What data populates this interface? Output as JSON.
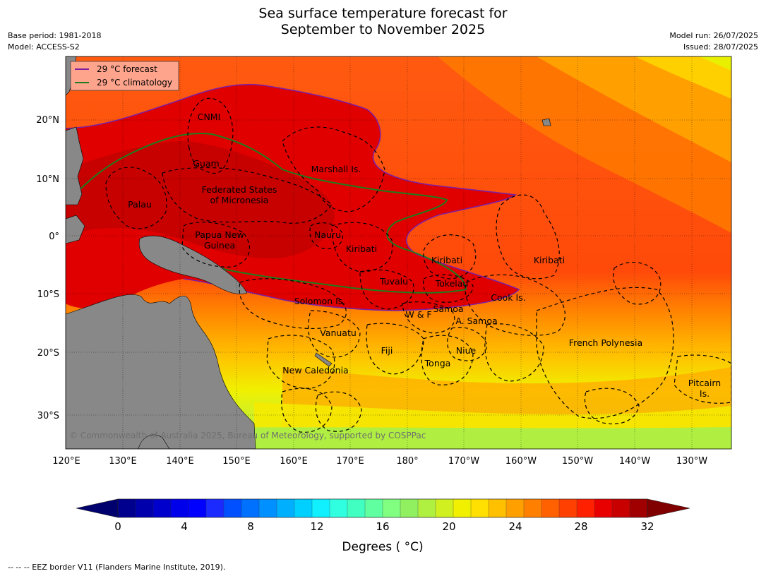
{
  "title_line1": "Sea surface temperature forecast for",
  "title_line2": "September to November 2025",
  "base_period": "Base period: 1981-2018",
  "model": "Model: ACCESS-S2",
  "model_run": "Model run: 26/07/2025",
  "issued": "Issued: 28/07/2025",
  "legend": {
    "forecast_label": "29 °C  forecast",
    "forecast_color": "#7f1fa0",
    "climatology_label": "29 °C  climatology",
    "climatology_color": "#1e7d1e"
  },
  "lon_ticks": [
    "120°E",
    "130°E",
    "140°E",
    "150°E",
    "160°E",
    "170°E",
    "180°",
    "170°W",
    "160°W",
    "150°W",
    "140°W",
    "130°W"
  ],
  "lat_ticks": [
    "20°N",
    "10°N",
    "0°",
    "10°S",
    "20°S",
    "30°S"
  ],
  "copyright": "© Commonwealth of Australia 2025, Bureau of Meteorology, supported by COSPPac",
  "region_labels": [
    "CNMI",
    "Guam",
    "Marshall Is.",
    "Federated States",
    "of Micronesia",
    "Palau",
    "Papua New",
    "Guinea",
    "Nauru",
    "Kiribati",
    "Kiribati",
    "Kiribati",
    "Tuvalu",
    "Tokelau",
    "Solomon Is.",
    "Cook Is.",
    "W & F",
    "Samoa",
    "A. Samoa",
    "Vanuatu",
    "Fiji",
    "Niue",
    "French Polynesia",
    "Tonga",
    "New Caledonia",
    "Pitcairn",
    "Is."
  ],
  "colorbar": {
    "tick_labels": [
      "0",
      "4",
      "8",
      "12",
      "16",
      "20",
      "24",
      "28",
      "32"
    ],
    "colors": [
      "#00008f",
      "#0000ad",
      "#0000cc",
      "#0000eb",
      "#0000ff",
      "#1b2bff",
      "#0050ff",
      "#0070ff",
      "#0090ff",
      "#00b0ff",
      "#00d0ff",
      "#10f0ff",
      "#30ffe0",
      "#40ffc0",
      "#60ffa0",
      "#80ff80",
      "#90f060",
      "#b0f040",
      "#d0f020",
      "#f0f000",
      "#ffe000",
      "#ffc000",
      "#ffa000",
      "#ff8000",
      "#ff6000",
      "#ff4000",
      "#ff2000",
      "#e80000",
      "#c80000",
      "#a00000"
    ],
    "min_color": "#00006e",
    "max_color": "#800000",
    "label": "Degrees ( °C)"
  },
  "footer": "--  --  -- EEZ border V11 (Flanders Marine Institute, 2019)."
}
